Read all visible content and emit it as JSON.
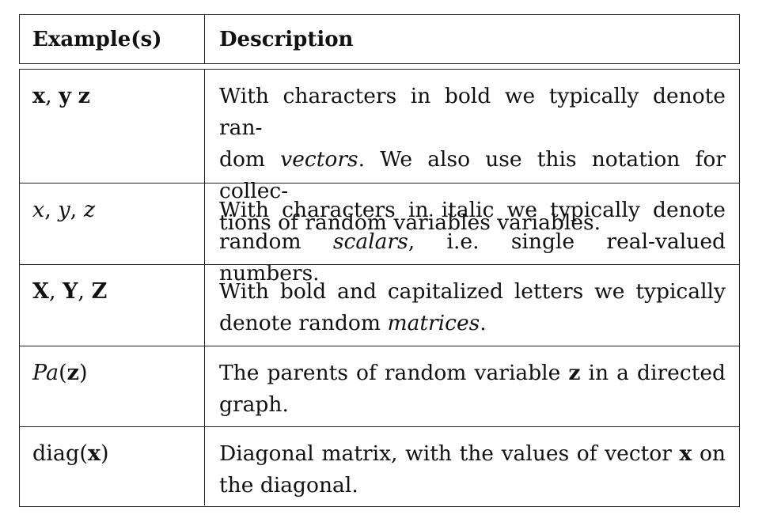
{
  "header": {
    "col1": "Example(s)",
    "col2": "Description"
  },
  "rows": [
    {
      "symbol": [
        "x",
        ", ",
        "y",
        " ",
        "z"
      ],
      "lines": [
        [
          "With characters in bold we typically denote ran-"
        ],
        [
          "dom ",
          "vectors",
          ". We also use this notation for collec-"
        ],
        [
          "tions of random variables variables."
        ]
      ]
    },
    {
      "symbol": [
        "x",
        ", ",
        "y",
        ", ",
        "z"
      ],
      "lines": [
        [
          "With characters in italic we typically denote"
        ],
        [
          "random ",
          "scalars",
          ", i.e. single real-valued numbers."
        ]
      ]
    },
    {
      "symbol": [
        "X",
        ", ",
        "Y",
        ", ",
        "Z"
      ],
      "lines": [
        [
          "With bold and capitalized letters we typically"
        ],
        [
          "denote random ",
          "matrices",
          "."
        ]
      ]
    },
    {
      "symbol": [
        "Pa",
        "(",
        "z",
        ")"
      ],
      "lines": [
        [
          "The parents of random variable ",
          "z",
          " in a directed"
        ],
        [
          "graph."
        ]
      ]
    },
    {
      "symbol": [
        "diag",
        "(",
        "x",
        ")"
      ],
      "lines": [
        [
          "Diagonal matrix, with the values of vector ",
          "x",
          " on"
        ],
        [
          "the diagonal."
        ]
      ]
    }
  ]
}
